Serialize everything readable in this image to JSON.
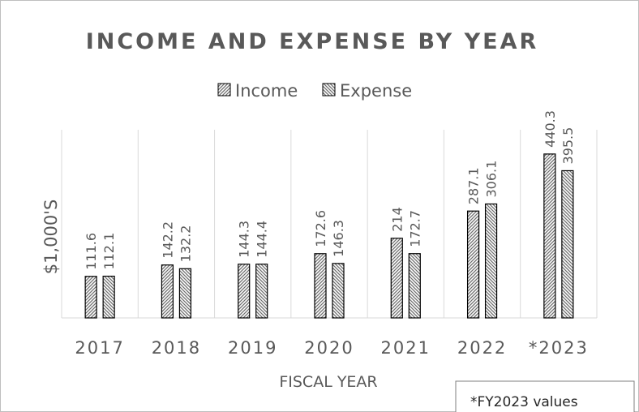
{
  "chart_data": {
    "type": "bar",
    "title": "INCOME AND EXPENSE BY YEAR",
    "xlabel": "FISCAL YEAR",
    "ylabel": "$1,000'S",
    "categories": [
      "2017",
      "2018",
      "2019",
      "2020",
      "2021",
      "2022",
      "*2023"
    ],
    "series": [
      {
        "name": "Income",
        "values": [
          111.6,
          142.2,
          144.3,
          172.6,
          214,
          287.1,
          440.3
        ]
      },
      {
        "name": "Expense",
        "values": [
          112.1,
          132.2,
          144.4,
          146.3,
          172.7,
          306.1,
          395.5
        ]
      }
    ],
    "data_labels": [
      [
        "111.6",
        "142.2",
        "144.3",
        "172.6",
        "214",
        "287.1",
        "440.3"
      ],
      [
        "112.1",
        "132.2",
        "144.4",
        "146.3",
        "172.7",
        "306.1",
        "395.5"
      ]
    ],
    "ylim": [
      0,
      480
    ],
    "grid": "vertical category separators",
    "legend": "top-center",
    "note": "*FY2023 values",
    "colors": {
      "bar_stroke": "#000000",
      "bar_hatch": "#6e6e6e",
      "text": "#595959",
      "grid": "#d9d9d9"
    }
  }
}
